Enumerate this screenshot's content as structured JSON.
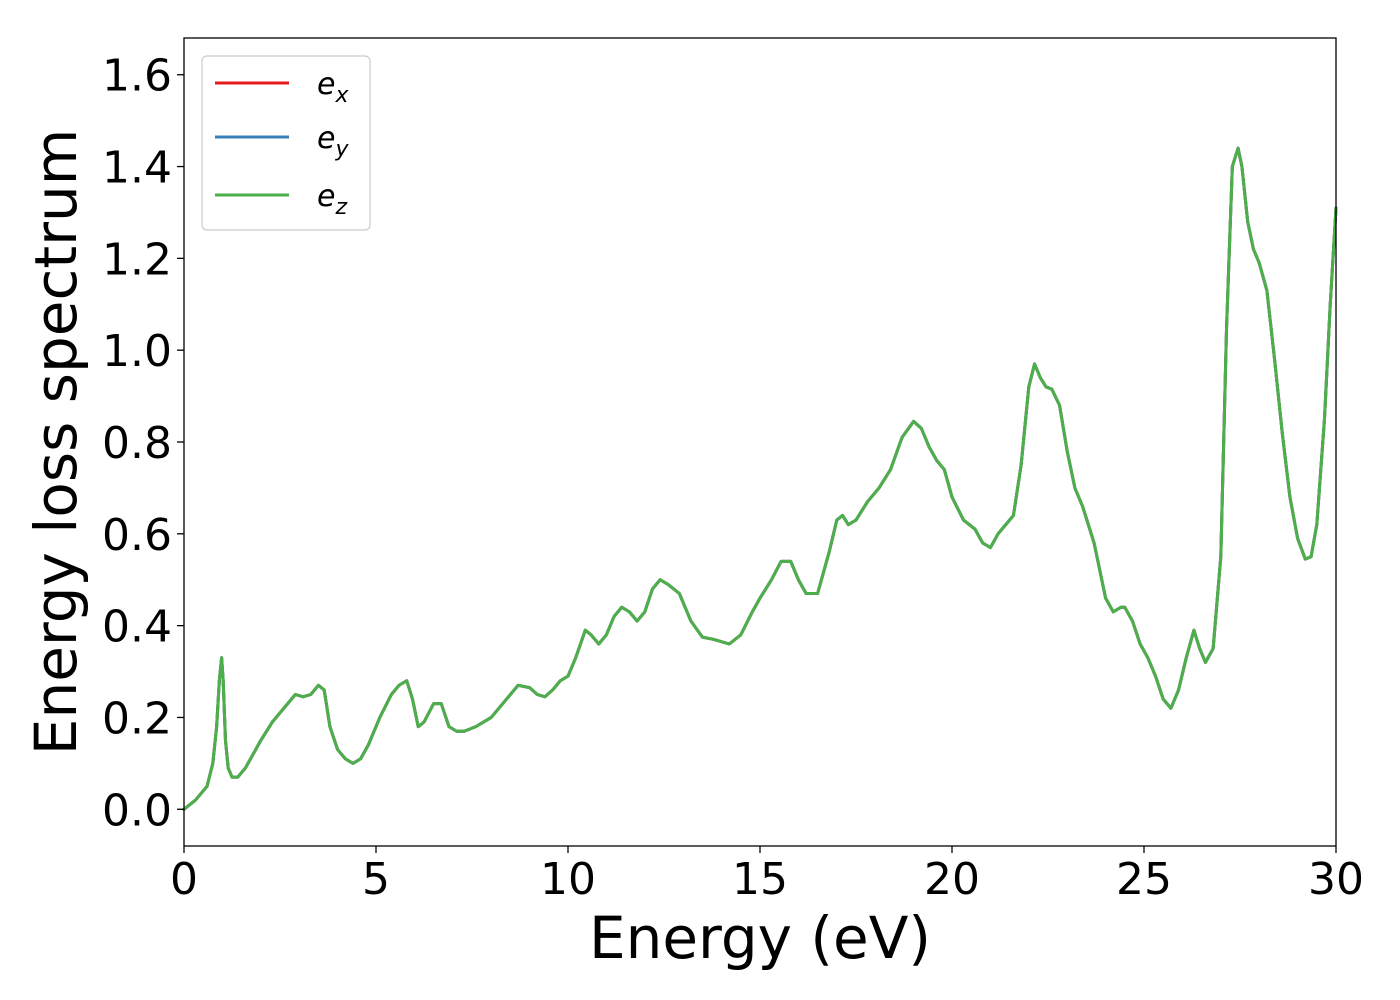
{
  "chart_data": {
    "type": "line",
    "title": "",
    "xlabel": "Energy (eV)",
    "ylabel": "Energy loss spectrum",
    "xlim": [
      0,
      30
    ],
    "ylim": [
      -0.08,
      1.68
    ],
    "xticks": [
      "0",
      "5",
      "10",
      "15",
      "20",
      "25",
      "30"
    ],
    "yticks": [
      "0.0",
      "0.2",
      "0.4",
      "0.6",
      "0.8",
      "1.0",
      "1.2",
      "1.4",
      "1.6"
    ],
    "grid": false,
    "legend_position": "top-left",
    "series": [
      {
        "name": "e",
        "subscript": "x",
        "color": "#e41a1c"
      },
      {
        "name": "e",
        "subscript": "y",
        "color": "#377eb8"
      },
      {
        "name": "e",
        "subscript": "z",
        "color": "#4daf4a"
      }
    ],
    "x": [
      0,
      0.3,
      0.6,
      0.75,
      0.85,
      0.92,
      0.98,
      1.02,
      1.08,
      1.15,
      1.25,
      1.4,
      1.6,
      1.8,
      2.0,
      2.3,
      2.6,
      2.9,
      3.1,
      3.3,
      3.5,
      3.65,
      3.8,
      4.0,
      4.2,
      4.4,
      4.6,
      4.8,
      5.1,
      5.4,
      5.6,
      5.8,
      5.95,
      6.1,
      6.25,
      6.5,
      6.7,
      6.9,
      7.1,
      7.3,
      7.6,
      8.0,
      8.4,
      8.7,
      9.0,
      9.2,
      9.4,
      9.6,
      9.8,
      10.0,
      10.2,
      10.45,
      10.6,
      10.8,
      11.0,
      11.2,
      11.4,
      11.6,
      11.8,
      12.0,
      12.2,
      12.4,
      12.6,
      12.9,
      13.2,
      13.5,
      13.8,
      14.2,
      14.5,
      14.8,
      15.0,
      15.3,
      15.55,
      15.8,
      16.0,
      16.2,
      16.5,
      16.8,
      17.0,
      17.15,
      17.3,
      17.5,
      17.8,
      18.1,
      18.4,
      18.7,
      19.0,
      19.2,
      19.4,
      19.6,
      19.8,
      20.0,
      20.3,
      20.6,
      20.8,
      21.0,
      21.2,
      21.4,
      21.6,
      21.8,
      22.0,
      22.15,
      22.3,
      22.45,
      22.6,
      22.8,
      23.0,
      23.2,
      23.4,
      23.7,
      24.0,
      24.2,
      24.4,
      24.5,
      24.7,
      24.9,
      25.1,
      25.3,
      25.5,
      25.7,
      25.9,
      26.1,
      26.3,
      26.45,
      26.6,
      26.8,
      27.0,
      27.15,
      27.3,
      27.45,
      27.55,
      27.7,
      27.85,
      28.0,
      28.2,
      28.4,
      28.6,
      28.8,
      29.0,
      29.2,
      29.35,
      29.5,
      29.7,
      29.85,
      30.0
    ],
    "values": [
      0.0,
      0.02,
      0.05,
      0.1,
      0.18,
      0.28,
      0.33,
      0.28,
      0.15,
      0.09,
      0.07,
      0.07,
      0.09,
      0.12,
      0.15,
      0.19,
      0.22,
      0.25,
      0.245,
      0.25,
      0.27,
      0.26,
      0.18,
      0.13,
      0.11,
      0.1,
      0.11,
      0.14,
      0.2,
      0.25,
      0.27,
      0.28,
      0.24,
      0.18,
      0.19,
      0.23,
      0.23,
      0.18,
      0.17,
      0.17,
      0.18,
      0.2,
      0.24,
      0.27,
      0.265,
      0.25,
      0.245,
      0.26,
      0.28,
      0.29,
      0.33,
      0.39,
      0.38,
      0.36,
      0.38,
      0.42,
      0.44,
      0.43,
      0.41,
      0.43,
      0.48,
      0.5,
      0.49,
      0.47,
      0.41,
      0.375,
      0.37,
      0.36,
      0.38,
      0.43,
      0.46,
      0.5,
      0.54,
      0.54,
      0.5,
      0.47,
      0.47,
      0.56,
      0.63,
      0.64,
      0.62,
      0.63,
      0.67,
      0.7,
      0.74,
      0.81,
      0.845,
      0.83,
      0.79,
      0.76,
      0.74,
      0.68,
      0.63,
      0.61,
      0.58,
      0.57,
      0.6,
      0.62,
      0.64,
      0.75,
      0.92,
      0.97,
      0.94,
      0.92,
      0.915,
      0.88,
      0.78,
      0.7,
      0.66,
      0.58,
      0.46,
      0.43,
      0.44,
      0.44,
      0.41,
      0.36,
      0.33,
      0.29,
      0.24,
      0.22,
      0.26,
      0.33,
      0.39,
      0.35,
      0.32,
      0.35,
      0.55,
      1.05,
      1.4,
      1.44,
      1.4,
      1.28,
      1.22,
      1.19,
      1.13,
      0.98,
      0.82,
      0.68,
      0.59,
      0.545,
      0.55,
      0.62,
      0.85,
      1.1,
      1.31
    ]
  }
}
